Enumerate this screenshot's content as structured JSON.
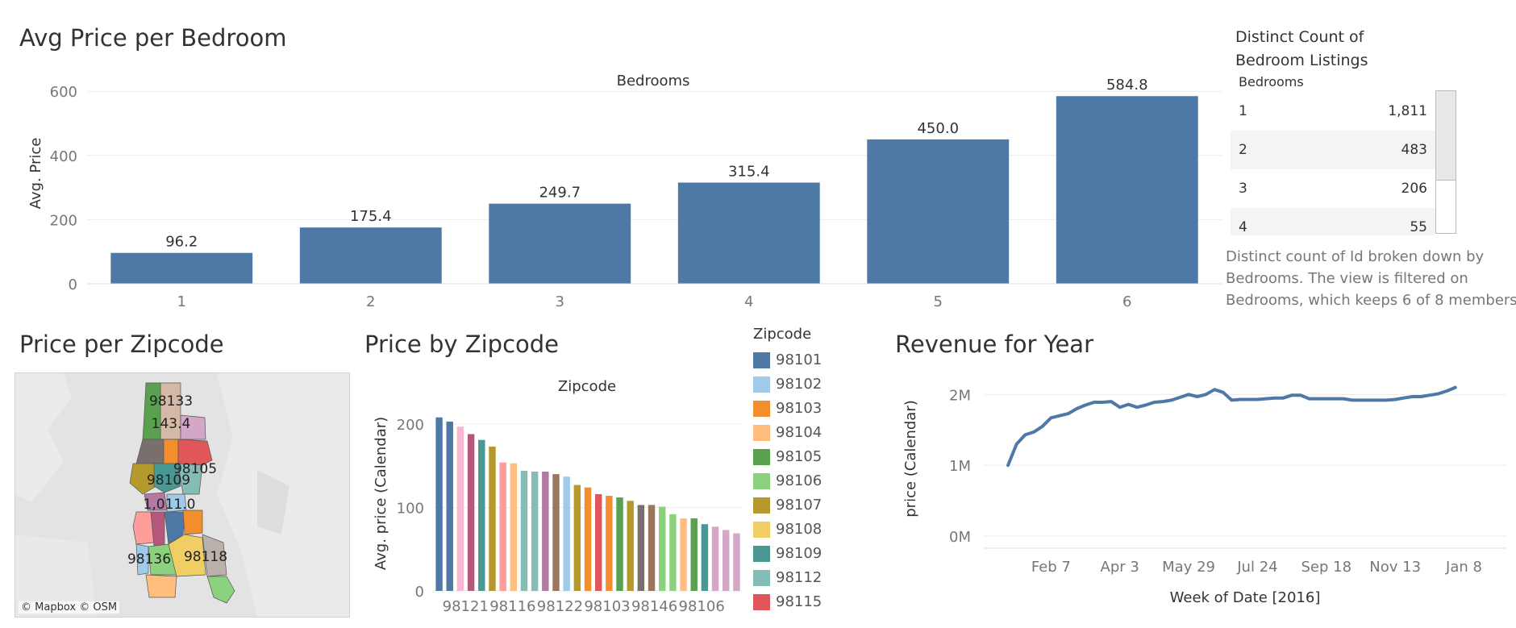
{
  "titles": {
    "avg_price": "Avg Price per Bedroom",
    "price_zip_map": "Price per Zipcode",
    "price_by_zip": "Price by Zipcode",
    "revenue": "Revenue for Year"
  },
  "colors": {
    "bar": "#4e79a7",
    "line": "#4e79a7",
    "grid": "#ececec"
  },
  "chart_data": [
    {
      "type": "bar",
      "title": "Avg Price per Bedroom",
      "header": "Bedrooms",
      "ylabel": "Avg. Price",
      "categories": [
        "1",
        "2",
        "3",
        "4",
        "5",
        "6"
      ],
      "values": [
        96.2,
        175.4,
        249.7,
        315.4,
        450.0,
        584.8
      ],
      "value_labels": [
        "96.2",
        "175.4",
        "249.7",
        "315.4",
        "450.0",
        "584.8"
      ],
      "yticks": [
        "0",
        "200",
        "400",
        "600"
      ],
      "ylim": [
        0,
        680
      ],
      "grid": true
    },
    {
      "type": "bar",
      "title": "Price by Zipcode",
      "header": "Zipcode",
      "ylabel": "Avg. price (Calendar)",
      "values": [
        208,
        203,
        197,
        188,
        181,
        173,
        154,
        153,
        144,
        143,
        143,
        140,
        137,
        127,
        124,
        116,
        114,
        112,
        108,
        103,
        103,
        101,
        92,
        87,
        87,
        80,
        77,
        73,
        69
      ],
      "colors": [
        "#4e79a7",
        "#4e79a7",
        "#f7b6d2",
        "#b6577c",
        "#499894",
        "#b6992d",
        "#ff9d9a",
        "#ffbe7d",
        "#86bcb6",
        "#86bcb6",
        "#b07aa1",
        "#9c755f",
        "#a0cbe8",
        "#b6992d",
        "#f28e2b",
        "#e15759",
        "#f28e2b",
        "#59a14f",
        "#b6992d",
        "#79706e",
        "#9c755f",
        "#8cd17d",
        "#8cd17d",
        "#ffbe7d",
        "#59a14f",
        "#499894",
        "#d4a6c8",
        "#d4a6c8",
        "#d4a6c8"
      ],
      "xtick_labels": [
        "98121",
        "98116",
        "98122",
        "98103",
        "98146",
        "98106"
      ],
      "yticks": [
        "0",
        "100",
        "200"
      ],
      "ylim": [
        0,
        230
      ],
      "grid": true,
      "legend": {
        "title": "Zipcode",
        "placement": "right",
        "items": [
          {
            "label": "98101",
            "color": "#4e79a7"
          },
          {
            "label": "98102",
            "color": "#a0cbe8"
          },
          {
            "label": "98103",
            "color": "#f28e2b"
          },
          {
            "label": "98104",
            "color": "#ffbe7d"
          },
          {
            "label": "98105",
            "color": "#59a14f"
          },
          {
            "label": "98106",
            "color": "#8cd17d"
          },
          {
            "label": "98107",
            "color": "#b6992d"
          },
          {
            "label": "98108",
            "color": "#f1ce63"
          },
          {
            "label": "98109",
            "color": "#499894"
          },
          {
            "label": "98112",
            "color": "#86bcb6"
          },
          {
            "label": "98115",
            "color": "#e15759"
          }
        ]
      }
    },
    {
      "type": "line",
      "title": "Revenue for Year",
      "ylabel": "price (Calendar)",
      "xlabel": "Week of Date [2016]",
      "xticks": [
        "Feb 7",
        "Apr 3",
        "May 29",
        "Jul 24",
        "Sep 18",
        "Nov 13",
        "Jan 8"
      ],
      "yticks": [
        "0M",
        "1M",
        "2M"
      ],
      "ylim": [
        0,
        2.3
      ],
      "x_weeks": [
        0,
        1,
        2,
        3,
        4,
        5,
        6,
        7,
        8,
        9,
        10,
        11,
        12,
        13,
        14,
        15,
        16,
        17,
        18,
        19,
        20,
        21,
        22,
        23,
        24,
        25,
        26,
        27,
        28,
        29,
        30,
        31,
        32,
        33,
        34,
        35,
        36,
        37,
        38,
        39,
        40,
        41,
        42,
        43,
        44,
        45,
        46,
        47,
        48,
        49,
        50,
        51,
        52
      ],
      "y_millions": [
        1.0,
        1.3,
        1.43,
        1.47,
        1.55,
        1.67,
        1.7,
        1.73,
        1.8,
        1.85,
        1.89,
        1.89,
        1.9,
        1.82,
        1.86,
        1.82,
        1.85,
        1.89,
        1.9,
        1.92,
        1.96,
        2.0,
        1.97,
        2.0,
        2.07,
        2.03,
        1.92,
        1.93,
        1.93,
        1.93,
        1.94,
        1.95,
        1.95,
        1.99,
        1.99,
        1.94,
        1.94,
        1.94,
        1.94,
        1.94,
        1.92,
        1.92,
        1.92,
        1.92,
        1.92,
        1.93,
        1.95,
        1.97,
        1.97,
        1.99,
        2.01,
        2.05,
        2.1
      ],
      "grid": true
    }
  ],
  "distinct_count": {
    "title_line1": "Distinct Count of",
    "title_line2": "Bedroom Listings",
    "column_header": "Bedrooms",
    "rows": [
      {
        "key": "1",
        "value": "1,811"
      },
      {
        "key": "2",
        "value": "483"
      },
      {
        "key": "3",
        "value": "206"
      },
      {
        "key": "4",
        "value": "55"
      }
    ],
    "caption_line1": "Distinct count of Id broken down by",
    "caption_line2": "Bedrooms. The view is filtered on",
    "caption_line3": "Bedrooms, which keeps 6 of 8 members."
  },
  "map": {
    "attribution": "© Mapbox © OSM",
    "labels": [
      "98133",
      "143.4",
      "98105",
      "98109",
      "1,011.0",
      "98136",
      "98118"
    ]
  }
}
